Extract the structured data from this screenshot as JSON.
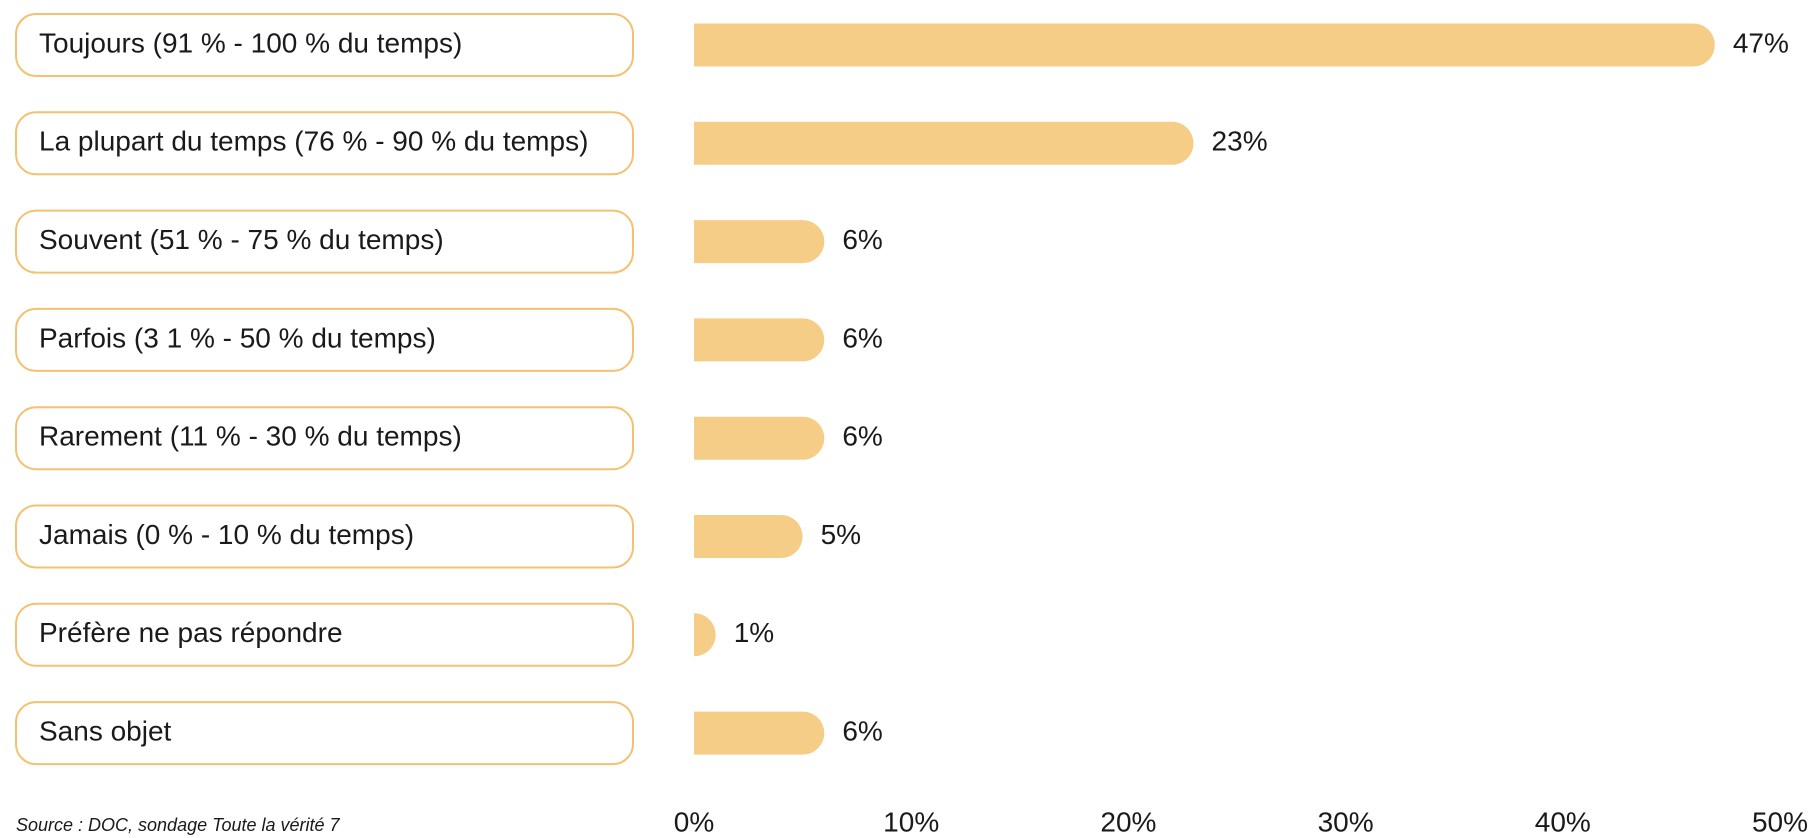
{
  "chart_data": {
    "type": "bar",
    "orientation": "horizontal",
    "categories": [
      "Toujours (91 % - 100 % du temps)",
      "La plupart du temps (76 % - 90 % du temps)",
      "Souvent (51 % - 75 % du temps)",
      "Parfois (3 1 % - 50 % du temps)",
      "Rarement (11 % - 30 % du temps)",
      "Jamais (0 % - 10 % du temps)",
      "Préfère ne pas répondre",
      "Sans objet"
    ],
    "values": [
      47,
      23,
      6,
      6,
      6,
      5,
      1,
      6
    ],
    "value_labels": [
      "47%",
      "23%",
      "6%",
      "6%",
      "6%",
      "5%",
      "1%",
      "6%"
    ],
    "color": "#f5cd87",
    "xlim": [
      0,
      50
    ],
    "xticks": [
      {
        "value": 0,
        "label": "0%"
      },
      {
        "value": 10,
        "label": "10%"
      },
      {
        "value": 20,
        "label": "20%"
      },
      {
        "value": 30,
        "label": "30%"
      },
      {
        "value": 40,
        "label": "40%"
      },
      {
        "value": 50,
        "label": "50%"
      }
    ],
    "source": "Source : DOC, sondage Toute la vérité 7"
  }
}
